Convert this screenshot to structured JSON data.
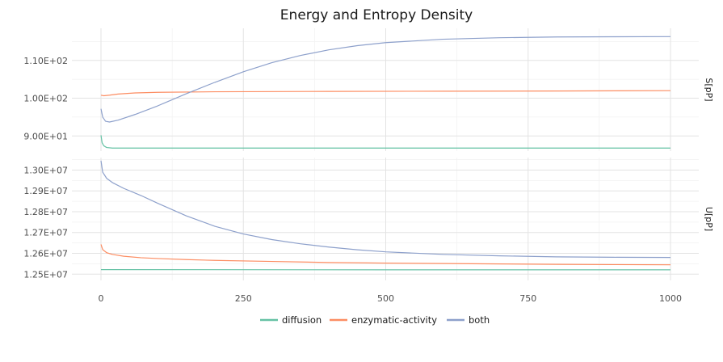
{
  "chart_data": {
    "type": "line",
    "title": "Energy and Entropy Density",
    "xlim": [
      0,
      1000
    ],
    "x_ticks": [
      "0",
      "250",
      "500",
      "750",
      "1000"
    ],
    "grid": true,
    "legend_position": "bottom",
    "colors": {
      "diffusion": "#66c2a5",
      "enzymatic-activity": "#fc8d62",
      "both": "#8da0cb"
    },
    "panels": [
      {
        "facet_label": "S[pP]",
        "ylim": [
          86.0,
          118.5
        ],
        "y_ticks": [
          {
            "value": 90,
            "label": "9.00E+01"
          },
          {
            "value": 100,
            "label": "1.00E+02"
          },
          {
            "value": 110,
            "label": "1.10E+02"
          }
        ],
        "series": [
          {
            "name": "diffusion",
            "points": [
              [
                0,
                90.2
              ],
              [
                2,
                88.2
              ],
              [
                5,
                87.4
              ],
              [
                10,
                86.95
              ],
              [
                20,
                86.8
              ],
              [
                50,
                86.8
              ],
              [
                200,
                86.8
              ],
              [
                500,
                86.8
              ],
              [
                1000,
                86.8
              ]
            ]
          },
          {
            "name": "enzymatic-activity",
            "points": [
              [
                0,
                100.8
              ],
              [
                5,
                100.65
              ],
              [
                15,
                100.8
              ],
              [
                30,
                101.1
              ],
              [
                60,
                101.4
              ],
              [
                100,
                101.55
              ],
              [
                200,
                101.7
              ],
              [
                400,
                101.8
              ],
              [
                600,
                101.85
              ],
              [
                800,
                101.9
              ],
              [
                1000,
                102.0
              ]
            ]
          },
          {
            "name": "both",
            "points": [
              [
                0,
                97.2
              ],
              [
                3,
                95.0
              ],
              [
                8,
                93.9
              ],
              [
                15,
                93.7
              ],
              [
                30,
                94.2
              ],
              [
                60,
                95.7
              ],
              [
                100,
                98.0
              ],
              [
                150,
                101.2
              ],
              [
                200,
                104.2
              ],
              [
                250,
                107.0
              ],
              [
                300,
                109.4
              ],
              [
                350,
                111.3
              ],
              [
                400,
                112.8
              ],
              [
                450,
                113.9
              ],
              [
                500,
                114.7
              ],
              [
                600,
                115.6
              ],
              [
                700,
                116.0
              ],
              [
                800,
                116.2
              ],
              [
                900,
                116.25
              ],
              [
                1000,
                116.3
              ]
            ]
          }
        ]
      },
      {
        "facet_label": "U[pP]",
        "ylim": [
          12470000,
          13060000
        ],
        "y_ticks": [
          {
            "value": 12500000,
            "label": "1.25E+07"
          },
          {
            "value": 12600000,
            "label": "1.26E+07"
          },
          {
            "value": 12700000,
            "label": "1.27E+07"
          },
          {
            "value": 12800000,
            "label": "1.28E+07"
          },
          {
            "value": 12900000,
            "label": "1.29E+07"
          },
          {
            "value": 13000000,
            "label": "1.30E+07"
          }
        ],
        "series": [
          {
            "name": "diffusion",
            "points": [
              [
                0,
                12522000
              ],
              [
                500,
                12521000
              ],
              [
                1000,
                12521000
              ]
            ]
          },
          {
            "name": "enzymatic-activity",
            "points": [
              [
                0,
                12643000
              ],
              [
                3,
                12618000
              ],
              [
                10,
                12603000
              ],
              [
                20,
                12595000
              ],
              [
                40,
                12586000
              ],
              [
                70,
                12579000
              ],
              [
                100,
                12575000
              ],
              [
                150,
                12570000
              ],
              [
                200,
                12566000
              ],
              [
                300,
                12561000
              ],
              [
                400,
                12556000
              ],
              [
                500,
                12553000
              ],
              [
                600,
                12551000
              ],
              [
                700,
                12549000
              ],
              [
                800,
                12547000
              ],
              [
                900,
                12546000
              ],
              [
                1000,
                12545000
              ]
            ]
          },
          {
            "name": "both",
            "points": [
              [
                0,
                13045000
              ],
              [
                3,
                12990000
              ],
              [
                10,
                12960000
              ],
              [
                20,
                12940000
              ],
              [
                40,
                12912000
              ],
              [
                70,
                12878000
              ],
              [
                100,
                12840000
              ],
              [
                150,
                12780000
              ],
              [
                200,
                12730000
              ],
              [
                250,
                12693000
              ],
              [
                300,
                12666000
              ],
              [
                350,
                12646000
              ],
              [
                400,
                12630000
              ],
              [
                450,
                12617000
              ],
              [
                500,
                12607000
              ],
              [
                600,
                12595000
              ],
              [
                700,
                12588000
              ],
              [
                800,
                12583000
              ],
              [
                900,
                12581000
              ],
              [
                1000,
                12580000
              ]
            ]
          }
        ]
      }
    ]
  }
}
